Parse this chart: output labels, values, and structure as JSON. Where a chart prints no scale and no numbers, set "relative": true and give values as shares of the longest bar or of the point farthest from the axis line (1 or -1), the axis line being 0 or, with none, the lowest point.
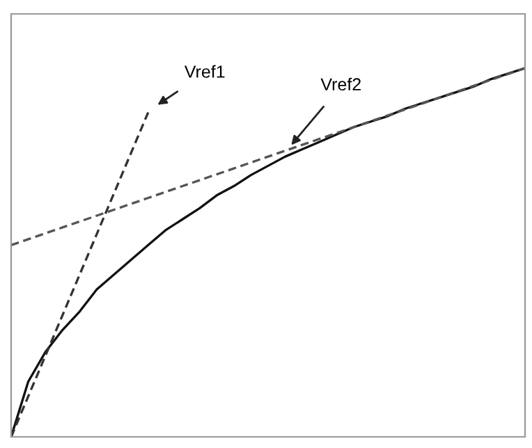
{
  "chart_data": {
    "type": "line",
    "relative": true,
    "legend": false,
    "categories": [
      null,
      null,
      null,
      null,
      null,
      null,
      null,
      null,
      null,
      null,
      null,
      null,
      null,
      null,
      null,
      null,
      null,
      null,
      null,
      null,
      null,
      null,
      null,
      null,
      null,
      null,
      null,
      null,
      null,
      null,
      null
    ],
    "series": [
      {
        "color": "#111111",
        "line_style": "solid",
        "values": [
          0,
          0.15,
          0.23,
          0.29,
          0.34,
          0.4,
          0.44,
          0.48,
          0.52,
          0.56,
          0.59,
          0.62,
          0.655,
          0.68,
          0.71,
          0.735,
          0.76,
          0.78,
          0.8,
          0.82,
          0.84,
          0.855,
          0.87,
          0.89,
          0.905,
          0.92,
          0.935,
          0.95,
          0.97,
          0.985,
          1.0
        ]
      },
      {
        "color": "#333333",
        "line_style": "dashed",
        "values": [
          0,
          0.11,
          0.22,
          0.33,
          0.44,
          0.55,
          0.66,
          0.77,
          0.88,
          null,
          null,
          null,
          null,
          null,
          null,
          null,
          null,
          null,
          null,
          null,
          null,
          null,
          null,
          null,
          null,
          null,
          null,
          null,
          null,
          null,
          null
        ]
      },
      {
        "color": "#555555",
        "line_style": "dashed",
        "values": [
          0.52,
          0.536,
          0.552,
          0.568,
          0.584,
          0.6,
          0.616,
          0.632,
          0.648,
          0.664,
          0.68,
          0.696,
          0.712,
          0.728,
          0.744,
          0.76,
          0.776,
          0.792,
          0.808,
          0.824,
          0.84,
          0.856,
          0.872,
          0.888,
          0.904,
          0.92,
          0.936,
          0.952,
          0.968,
          0.984,
          1.0
        ]
      }
    ],
    "annotations": [
      "Vref1",
      "Vref2"
    ]
  }
}
